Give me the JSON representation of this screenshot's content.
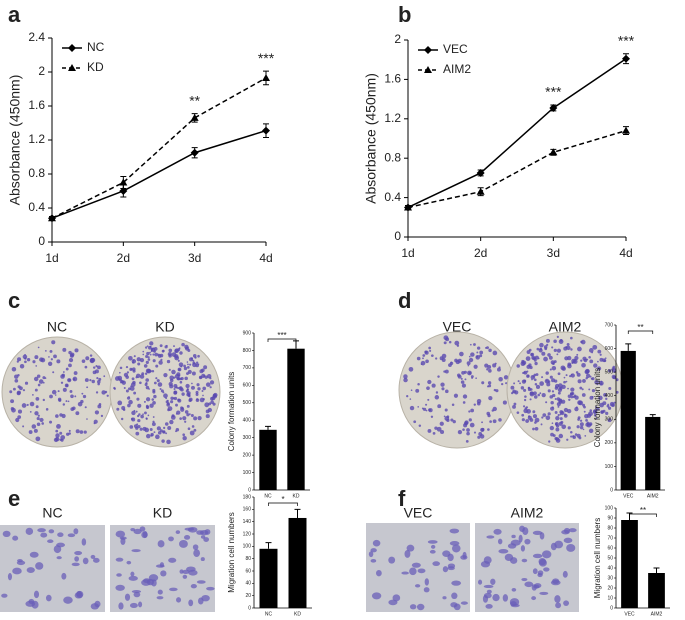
{
  "chart_data": [
    {
      "type": "line",
      "panel": "a",
      "ylabel": "Absorbance (450nm)",
      "categories": [
        "1d",
        "2d",
        "3d",
        "4d"
      ],
      "ylim": [
        0,
        2.4
      ],
      "yticks": [
        0,
        0.4,
        0.8,
        1.2,
        1.6,
        2,
        2.4
      ],
      "legend": "upper left",
      "annotations": [
        null,
        null,
        "**",
        "***"
      ],
      "series": [
        {
          "name": "NC",
          "color": "#000000",
          "line_style": "solid",
          "marker": "diamond",
          "values": [
            0.28,
            0.6,
            1.05,
            1.31
          ],
          "errors": [
            0.02,
            0.07,
            0.06,
            0.08
          ]
        },
        {
          "name": "KD",
          "color": "#000000",
          "line_style": "dashed",
          "marker": "triangle",
          "values": [
            0.28,
            0.7,
            1.46,
            1.93
          ],
          "errors": [
            0.02,
            0.07,
            0.05,
            0.08
          ]
        }
      ]
    },
    {
      "type": "line",
      "panel": "b",
      "ylabel": "Absorbance (450nm)",
      "categories": [
        "1d",
        "2d",
        "3d",
        "4d"
      ],
      "ylim": [
        0,
        2
      ],
      "yticks": [
        0,
        0.4,
        0.8,
        1.2,
        1.6,
        2
      ],
      "legend": "upper left",
      "annotations": [
        null,
        null,
        "***",
        "***"
      ],
      "series": [
        {
          "name": "VEC",
          "color": "#000000",
          "line_style": "solid",
          "marker": "diamond",
          "values": [
            0.3,
            0.65,
            1.31,
            1.81
          ],
          "errors": [
            0.02,
            0.03,
            0.03,
            0.05
          ]
        },
        {
          "name": "AIM2",
          "color": "#000000",
          "line_style": "dashed",
          "marker": "triangle",
          "values": [
            0.3,
            0.46,
            0.86,
            1.08
          ],
          "errors": [
            0.02,
            0.04,
            0.03,
            0.04
          ]
        }
      ]
    },
    {
      "type": "bar",
      "panel": "c",
      "image_labels": [
        "NC",
        "KD"
      ],
      "ylabel": "Colony formation units",
      "categories": [
        "NC",
        "KD"
      ],
      "values": [
        345,
        810
      ],
      "errors": [
        20,
        45
      ],
      "color": "#000000",
      "ylim": [
        0,
        900
      ],
      "yticks": [
        0,
        100,
        200,
        300,
        400,
        500,
        600,
        700,
        800,
        900
      ],
      "annotation": "***"
    },
    {
      "type": "bar",
      "panel": "d",
      "image_labels": [
        "VEC",
        "AIM2"
      ],
      "ylabel": "Colony formation units",
      "categories": [
        "VEC",
        "AIM2"
      ],
      "values": [
        590,
        310
      ],
      "errors": [
        30,
        10
      ],
      "color": "#000000",
      "ylim": [
        0,
        700
      ],
      "yticks": [
        0,
        100,
        200,
        300,
        400,
        500,
        600,
        700
      ],
      "annotation": "**"
    },
    {
      "type": "bar",
      "panel": "e",
      "image_labels": [
        "NC",
        "KD"
      ],
      "ylabel": "Migration cell numbers",
      "categories": [
        "NC",
        "KD"
      ],
      "values": [
        96,
        146
      ],
      "errors": [
        10,
        14
      ],
      "color": "#000000",
      "ylim": [
        0,
        180
      ],
      "yticks": [
        0,
        20,
        40,
        60,
        80,
        100,
        120,
        140,
        160,
        180
      ],
      "annotation": "*"
    },
    {
      "type": "bar",
      "panel": "f",
      "image_labels": [
        "VEC",
        "AIM2"
      ],
      "ylabel": "Migration cell numbers",
      "categories": [
        "VEC",
        "AIM2"
      ],
      "values": [
        88,
        35
      ],
      "errors": [
        7,
        5
      ],
      "color": "#000000",
      "ylim": [
        0,
        100
      ],
      "yticks": [
        0,
        10,
        20,
        30,
        40,
        50,
        60,
        70,
        80,
        90,
        100
      ],
      "annotation": "**"
    }
  ]
}
